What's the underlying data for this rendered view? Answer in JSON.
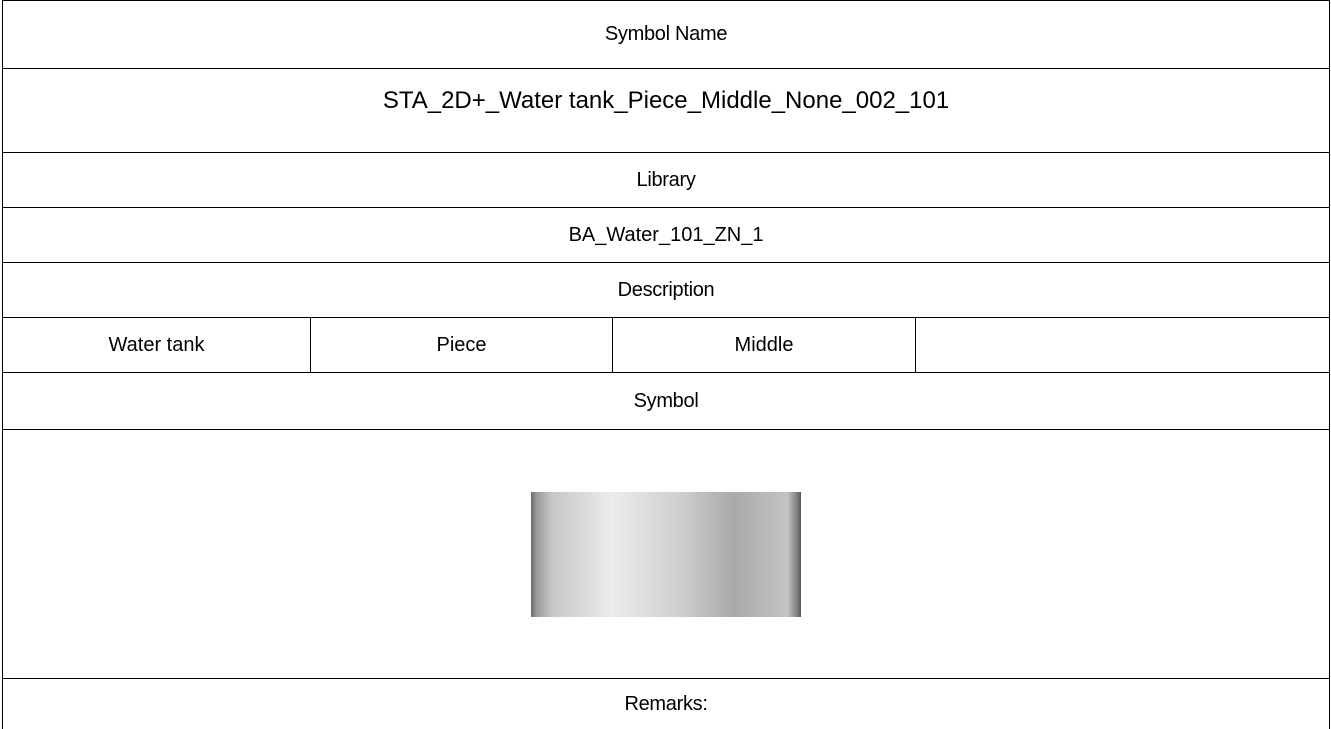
{
  "symbol_name": {
    "label": "Symbol Name",
    "value": "STA_2D+_Water tank_Piece_Middle_None_002_101"
  },
  "library": {
    "label": "Library",
    "value": "BA_Water_101_ZN_1"
  },
  "description": {
    "label": "Description",
    "values": [
      "Water tank",
      "Piece",
      "Middle"
    ]
  },
  "symbol": {
    "label": "Symbol"
  },
  "remarks": {
    "label": "Remarks:"
  }
}
